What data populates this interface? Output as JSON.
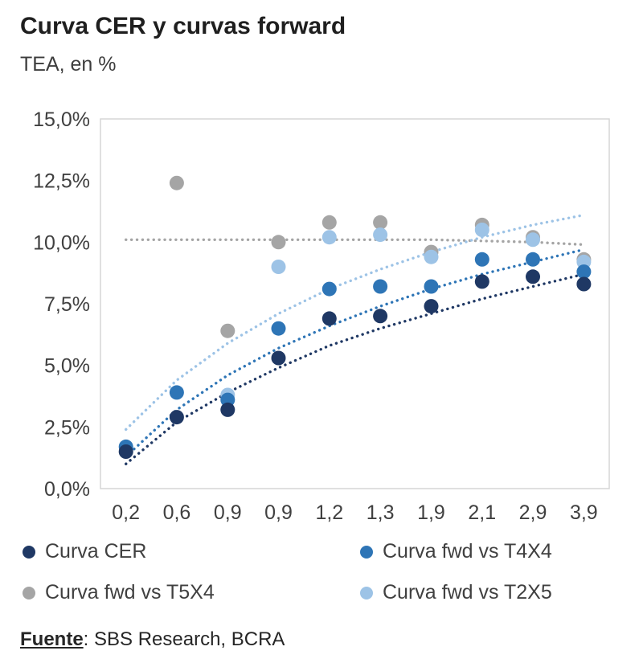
{
  "title": "Curva CER y curvas forward",
  "subtitle": "TEA, en %",
  "footer": {
    "source_label": "Fuente",
    "source_rest": ": SBS Research, BCRA"
  },
  "chart_data": {
    "type": "scatter",
    "title": "Curva CER y curvas forward",
    "subtitle": "TEA, en %",
    "xlabel": "",
    "ylabel": "TEA, en %",
    "ylim": [
      0,
      15
    ],
    "grid": false,
    "legend_position": "bottom",
    "categories": [
      "0,2",
      "0,6",
      "0,9",
      "0,9",
      "1,2",
      "1,3",
      "1,9",
      "2,1",
      "2,9",
      "3,9"
    ],
    "y_ticks": {
      "values": [
        0,
        2.5,
        5,
        7.5,
        10,
        12.5,
        15
      ],
      "labels": [
        "0,0%",
        "2,5%",
        "5,0%",
        "7,5%",
        "10,0%",
        "12,5%",
        "15,0%"
      ]
    },
    "series": [
      {
        "name": "Curva CER",
        "color": "#1f3864",
        "values": [
          1.5,
          2.9,
          3.2,
          5.3,
          6.9,
          7.0,
          7.4,
          8.4,
          8.6,
          8.3
        ],
        "trend": [
          1.0,
          2.7,
          3.9,
          4.9,
          5.8,
          6.5,
          7.1,
          7.7,
          8.2,
          8.7
        ]
      },
      {
        "name": "Curva fwd vs T4X4",
        "color": "#2e75b6",
        "values": [
          1.7,
          3.9,
          3.6,
          6.5,
          8.1,
          8.2,
          8.2,
          9.3,
          9.3,
          8.8
        ],
        "trend": [
          1.3,
          3.2,
          4.6,
          5.7,
          6.6,
          7.4,
          8.1,
          8.7,
          9.2,
          9.7
        ]
      },
      {
        "name": "Curva fwd vs T5X4",
        "color": "#a5a5a5",
        "values": [
          null,
          12.4,
          6.4,
          10.0,
          10.8,
          10.8,
          9.6,
          10.7,
          10.2,
          9.3
        ],
        "trend": [
          10.1,
          10.1,
          10.1,
          10.1,
          10.1,
          10.1,
          10.1,
          10.05,
          10.0,
          9.9
        ]
      },
      {
        "name": "Curva fwd vs T2X5",
        "color": "#9dc3e6",
        "values": [
          null,
          null,
          3.8,
          9.0,
          10.2,
          10.3,
          9.4,
          10.5,
          10.1,
          9.2
        ],
        "trend": [
          2.4,
          4.4,
          5.9,
          7.1,
          8.1,
          8.9,
          9.6,
          10.2,
          10.7,
          11.1
        ]
      }
    ]
  }
}
